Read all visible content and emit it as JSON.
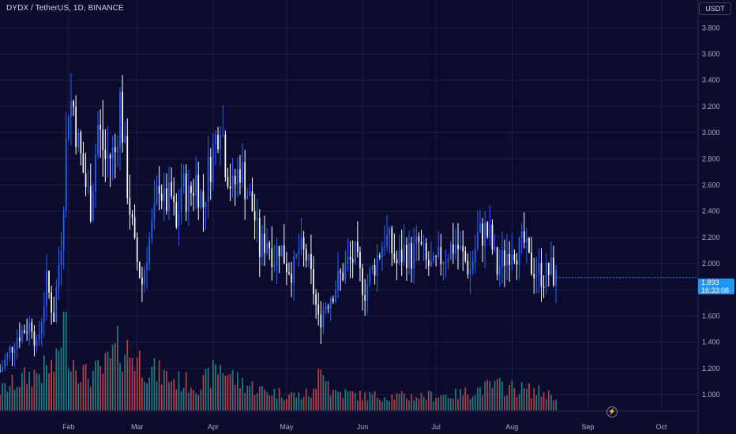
{
  "header": {
    "symbol_title": "DYDX / TetherUS, 1D, BINANCE",
    "currency_button": "USDT"
  },
  "last_price": {
    "price": "1.893",
    "countdown": "16:33:08",
    "color": "#2196f3"
  },
  "colors": {
    "background": "#0b0b2e",
    "grid": "#1b1f4a",
    "up": "#2962ff",
    "down": "#ffffff",
    "volume_up": "#26a69a",
    "volume_down": "#ef5350",
    "axis_text": "#a9adc3"
  },
  "icons": {
    "lightning": "lightning-icon"
  },
  "chart_data": {
    "type": "candlestick",
    "title": "DYDX / TetherUS, 1D, BINANCE",
    "y_axis": {
      "ticks": [
        "1.000",
        "1.200",
        "1.400",
        "1.600",
        "1.800",
        "2.000",
        "2.200",
        "2.400",
        "2.600",
        "2.800",
        "3.000",
        "3.200",
        "3.400",
        "3.600",
        "3.800"
      ],
      "ylim": [
        0.88,
        3.88
      ],
      "position": "right"
    },
    "x_axis": {
      "ticks": [
        {
          "label": "Feb",
          "day": 1
        },
        {
          "label": "Mar",
          "day": 29
        },
        {
          "label": "Apr",
          "day": 60
        },
        {
          "label": "May",
          "day": 90
        },
        {
          "label": "Jun",
          "day": 121
        },
        {
          "label": "Jul",
          "day": 151
        },
        {
          "label": "Aug",
          "day": 182
        },
        {
          "label": "Sep",
          "day": 213
        },
        {
          "label": "Oct",
          "day": 243
        }
      ],
      "xlim": [
        -27,
        258
      ]
    },
    "grid": true,
    "volume_pane": true,
    "anchors": [
      [
        -27,
        1.18
      ],
      [
        -20,
        1.45
      ],
      [
        -14,
        1.55
      ],
      [
        -12,
        1.35
      ],
      [
        -8,
        1.85
      ],
      [
        -5,
        1.6
      ],
      [
        -2,
        2.2
      ],
      [
        -1,
        2.55
      ],
      [
        1,
        3.25
      ],
      [
        3,
        3.2
      ],
      [
        5,
        2.9
      ],
      [
        8,
        2.6
      ],
      [
        10,
        2.45
      ],
      [
        13,
        3.05
      ],
      [
        16,
        2.8
      ],
      [
        20,
        2.85
      ],
      [
        22,
        3.25
      ],
      [
        25,
        2.6
      ],
      [
        28,
        2.1
      ],
      [
        31,
        1.85
      ],
      [
        33,
        2.1
      ],
      [
        36,
        2.35
      ],
      [
        38,
        2.65
      ],
      [
        40,
        2.45
      ],
      [
        43,
        2.5
      ],
      [
        45,
        2.25
      ],
      [
        47,
        2.6
      ],
      [
        50,
        2.5
      ],
      [
        53,
        2.65
      ],
      [
        56,
        2.45
      ],
      [
        58,
        2.7
      ],
      [
        61,
        2.95
      ],
      [
        63,
        3.15
      ],
      [
        65,
        2.8
      ],
      [
        68,
        2.55
      ],
      [
        71,
        2.75
      ],
      [
        74,
        2.55
      ],
      [
        77,
        2.35
      ],
      [
        79,
        2.1
      ],
      [
        82,
        2.2
      ],
      [
        85,
        2.05
      ],
      [
        87,
        2.15
      ],
      [
        90,
        2.0
      ],
      [
        93,
        1.95
      ],
      [
        95,
        2.1
      ],
      [
        98,
        2.05
      ],
      [
        101,
        1.8
      ],
      [
        103,
        1.55
      ],
      [
        106,
        1.7
      ],
      [
        109,
        1.8
      ],
      [
        112,
        1.9
      ],
      [
        115,
        2.0
      ],
      [
        118,
        2.05
      ],
      [
        120,
        1.9
      ],
      [
        122,
        1.8
      ],
      [
        125,
        1.95
      ],
      [
        128,
        2.1
      ],
      [
        130,
        2.2
      ],
      [
        132,
        2.15
      ],
      [
        135,
        2.0
      ],
      [
        138,
        2.1
      ],
      [
        141,
        2.05
      ],
      [
        144,
        2.15
      ],
      [
        147,
        2.0
      ],
      [
        150,
        1.95
      ],
      [
        153,
        2.05
      ],
      [
        156,
        2.1
      ],
      [
        159,
        2.15
      ],
      [
        162,
        2.05
      ],
      [
        165,
        1.95
      ],
      [
        168,
        2.2
      ],
      [
        171,
        2.25
      ],
      [
        173,
        2.2
      ],
      [
        176,
        1.95
      ],
      [
        179,
        2.05
      ],
      [
        182,
        2.15
      ],
      [
        185,
        2.1
      ],
      [
        187,
        2.15
      ],
      [
        189,
        2.0
      ],
      [
        192,
        1.95
      ],
      [
        195,
        1.9
      ],
      [
        198,
        1.95
      ],
      [
        200,
        1.88
      ]
    ],
    "volume_anchors": [
      [
        -27,
        0.2
      ],
      [
        -15,
        0.35
      ],
      [
        -4,
        0.45
      ],
      [
        -1,
        0.95
      ],
      [
        2,
        0.55
      ],
      [
        8,
        0.35
      ],
      [
        15,
        0.4
      ],
      [
        22,
        0.65
      ],
      [
        28,
        0.55
      ],
      [
        35,
        0.4
      ],
      [
        45,
        0.3
      ],
      [
        55,
        0.25
      ],
      [
        63,
        0.45
      ],
      [
        70,
        0.3
      ],
      [
        80,
        0.2
      ],
      [
        95,
        0.15
      ],
      [
        102,
        0.18
      ],
      [
        104,
        0.6
      ],
      [
        108,
        0.2
      ],
      [
        120,
        0.15
      ],
      [
        140,
        0.14
      ],
      [
        160,
        0.16
      ],
      [
        175,
        0.25
      ],
      [
        190,
        0.2
      ],
      [
        200,
        0.15
      ]
    ]
  }
}
